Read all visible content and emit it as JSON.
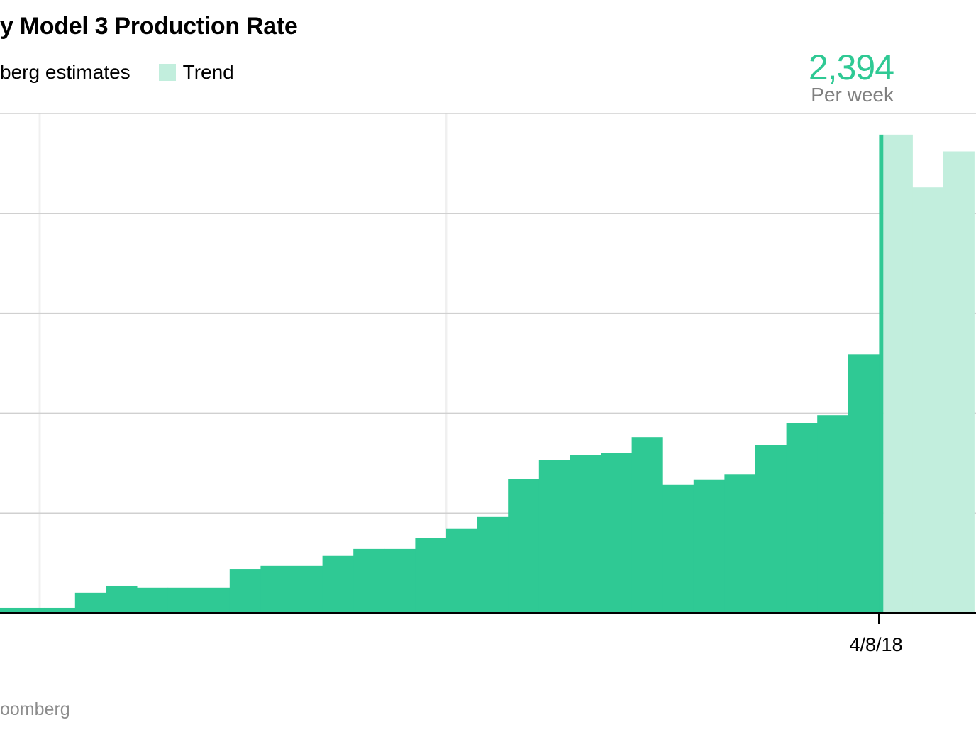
{
  "title": "y Model 3 Production Rate",
  "legend": [
    {
      "label": "berg estimates",
      "color": "#2fc994"
    },
    {
      "label": "Trend",
      "color": "#c2eedd"
    }
  ],
  "callout": {
    "value": "2,394",
    "sub": "Per week"
  },
  "source": "oomberg",
  "colors": {
    "estimate": "#2fc994",
    "trend": "#c2eedd",
    "grid": "#d0d0d0",
    "vgrid": "#f0f0f0",
    "axis": "#000000"
  },
  "chart_data": {
    "type": "area",
    "title": "y Model 3 Production Rate",
    "xlabel": "",
    "ylabel": "",
    "ylim": [
      0,
      2500
    ],
    "grid": true,
    "x_tick_labels": [
      "4/8/18"
    ],
    "series": [
      {
        "name": "berg estimates",
        "values": [
          25,
          25,
          25,
          100,
          135,
          125,
          125,
          125,
          220,
          235,
          235,
          285,
          320,
          320,
          375,
          420,
          480,
          670,
          765,
          790,
          800,
          880,
          640,
          665,
          695,
          840,
          950,
          990,
          1295,
          2394
        ]
      },
      {
        "name": "Trend",
        "values": [
          2394,
          2130,
          2310
        ]
      }
    ]
  }
}
